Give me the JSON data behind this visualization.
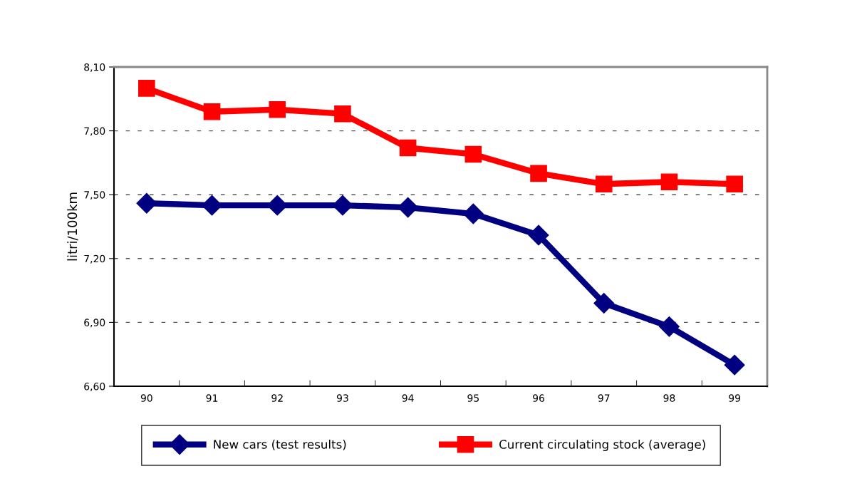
{
  "chart_data": {
    "type": "line",
    "ylabel": "litri/100km",
    "categories": [
      "90",
      "91",
      "92",
      "93",
      "94",
      "95",
      "96",
      "97",
      "98",
      "99"
    ],
    "series": [
      {
        "name": "New cars (test results)",
        "color": "#000080",
        "marker": "diamond",
        "values": [
          7.46,
          7.45,
          7.45,
          7.45,
          7.44,
          7.41,
          7.31,
          6.99,
          6.88,
          6.7
        ]
      },
      {
        "name": "Current circulating stock (average)",
        "color": "#ff0000",
        "marker": "square",
        "values": [
          8.0,
          7.89,
          7.9,
          7.88,
          7.72,
          7.69,
          7.6,
          7.55,
          7.56,
          7.55
        ]
      }
    ],
    "ylim": [
      6.6,
      8.1
    ],
    "yticks": [
      {
        "value": 6.6,
        "label": "6,60"
      },
      {
        "value": 6.9,
        "label": "6,90"
      },
      {
        "value": 7.2,
        "label": "7,20"
      },
      {
        "value": 7.5,
        "label": "7,50"
      },
      {
        "value": 7.8,
        "label": "7,80"
      },
      {
        "value": 8.1,
        "label": "8,10"
      }
    ],
    "grid": "y",
    "legend": "bottom",
    "line_style": "solid"
  }
}
